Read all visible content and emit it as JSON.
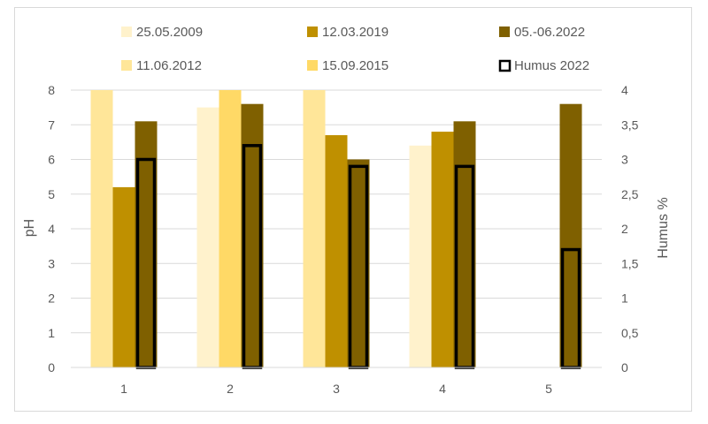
{
  "chart_data": {
    "type": "bar",
    "categories": [
      "1",
      "2",
      "3",
      "4",
      "5"
    ],
    "series": [
      {
        "name": "25.05.2009",
        "axis": "left",
        "color": "#fff2cc",
        "values": [
          null,
          7.5,
          null,
          6.4,
          null
        ]
      },
      {
        "name": "11.06.2012",
        "axis": "left",
        "color": "#ffe699",
        "values": [
          8,
          null,
          8,
          null,
          null
        ]
      },
      {
        "name": "15.09.2015",
        "axis": "left",
        "color": "#ffd966",
        "values": [
          null,
          8,
          null,
          null,
          null
        ]
      },
      {
        "name": "12.03.2019",
        "axis": "left",
        "color": "#bf9000",
        "values": [
          5.2,
          null,
          6.7,
          6.8,
          null
        ]
      },
      {
        "name": "05.-06.2022",
        "axis": "left",
        "color": "#7f6000",
        "values": [
          7.1,
          7.6,
          6.0,
          7.1,
          7.6
        ]
      },
      {
        "name": "Humus 2022",
        "axis": "right",
        "style": "outline",
        "color": "#000000",
        "values": [
          3.0,
          3.2,
          2.9,
          2.9,
          1.7
        ]
      }
    ],
    "legend_order": [
      "25.05.2009",
      "12.03.2019",
      "05.-06.2022",
      "11.06.2012",
      "15.09.2015",
      "Humus 2022"
    ],
    "legend_position": "top",
    "ylabel": "pH",
    "y2label": "Humus %",
    "ylim": [
      0,
      8
    ],
    "y2lim": [
      0,
      4
    ],
    "y_ticks": [
      "0",
      "1",
      "2",
      "3",
      "4",
      "5",
      "6",
      "7",
      "8"
    ],
    "y2_ticks": [
      "0",
      "0,5",
      "1",
      "1,5",
      "2",
      "2,5",
      "3",
      "3,5",
      "4"
    ],
    "grid": true
  }
}
